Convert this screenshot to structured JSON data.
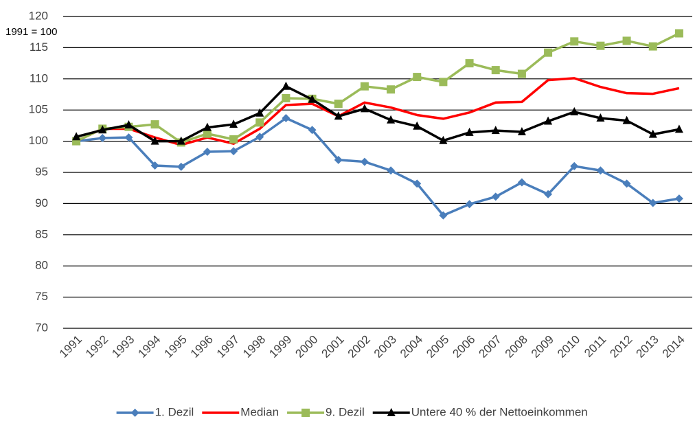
{
  "chart_data": {
    "type": "line",
    "y_label": "1991 = 100",
    "categories": [
      "1991",
      "1992",
      "1993",
      "1994",
      "1995",
      "1996",
      "1997",
      "1998",
      "1999",
      "2000",
      "2001",
      "2002",
      "2003",
      "2004",
      "2005",
      "2006",
      "2007",
      "2008",
      "2009",
      "2010",
      "2011",
      "2012",
      "2013",
      "2014"
    ],
    "series": [
      {
        "name": "1. Dezil",
        "color": "#4a7ebb",
        "marker": "diamond",
        "values": [
          100,
          100.5,
          100.6,
          96.1,
          95.9,
          98.3,
          98.4,
          100.7,
          103.7,
          101.8,
          97.0,
          96.7,
          95.3,
          93.2,
          88.1,
          89.9,
          91.1,
          93.4,
          91.5,
          96.0,
          95.3,
          93.2,
          90.1,
          90.8
        ]
      },
      {
        "name": "Median",
        "color": "#ff0000",
        "values": [
          100,
          102.0,
          102.0,
          100.6,
          99.4,
          100.6,
          99.6,
          102.0,
          105.8,
          106.0,
          104.0,
          106.2,
          105.4,
          104.2,
          103.6,
          104.6,
          106.2,
          106.3,
          109.8,
          110.1,
          108.7,
          107.7,
          107.6,
          108.5
        ]
      },
      {
        "name": "9. Dezil",
        "color": "#9bbb59",
        "marker": "square",
        "values": [
          100,
          102.0,
          102.3,
          102.7,
          99.8,
          101.2,
          100.3,
          103.0,
          106.9,
          106.8,
          106.0,
          108.8,
          108.3,
          110.3,
          109.5,
          112.5,
          111.4,
          110.8,
          114.2,
          116.0,
          115.3,
          116.1,
          115.2,
          117.3
        ]
      },
      {
        "name": "Untere 40 % der Nettoeinkommen",
        "color": "#000000",
        "marker": "triangle",
        "values": [
          100.7,
          101.8,
          102.6,
          100.0,
          100.0,
          102.2,
          102.7,
          104.5,
          108.8,
          106.7,
          104.0,
          105.2,
          103.4,
          102.4,
          100.1,
          101.4,
          101.7,
          101.5,
          103.2,
          104.7,
          103.7,
          103.3,
          101.1,
          101.9
        ]
      }
    ],
    "ylim": [
      70,
      120
    ],
    "yticks": [
      70,
      75,
      80,
      85,
      90,
      95,
      100,
      105,
      110,
      115,
      120
    ],
    "grid": true,
    "legend": "bottom"
  }
}
